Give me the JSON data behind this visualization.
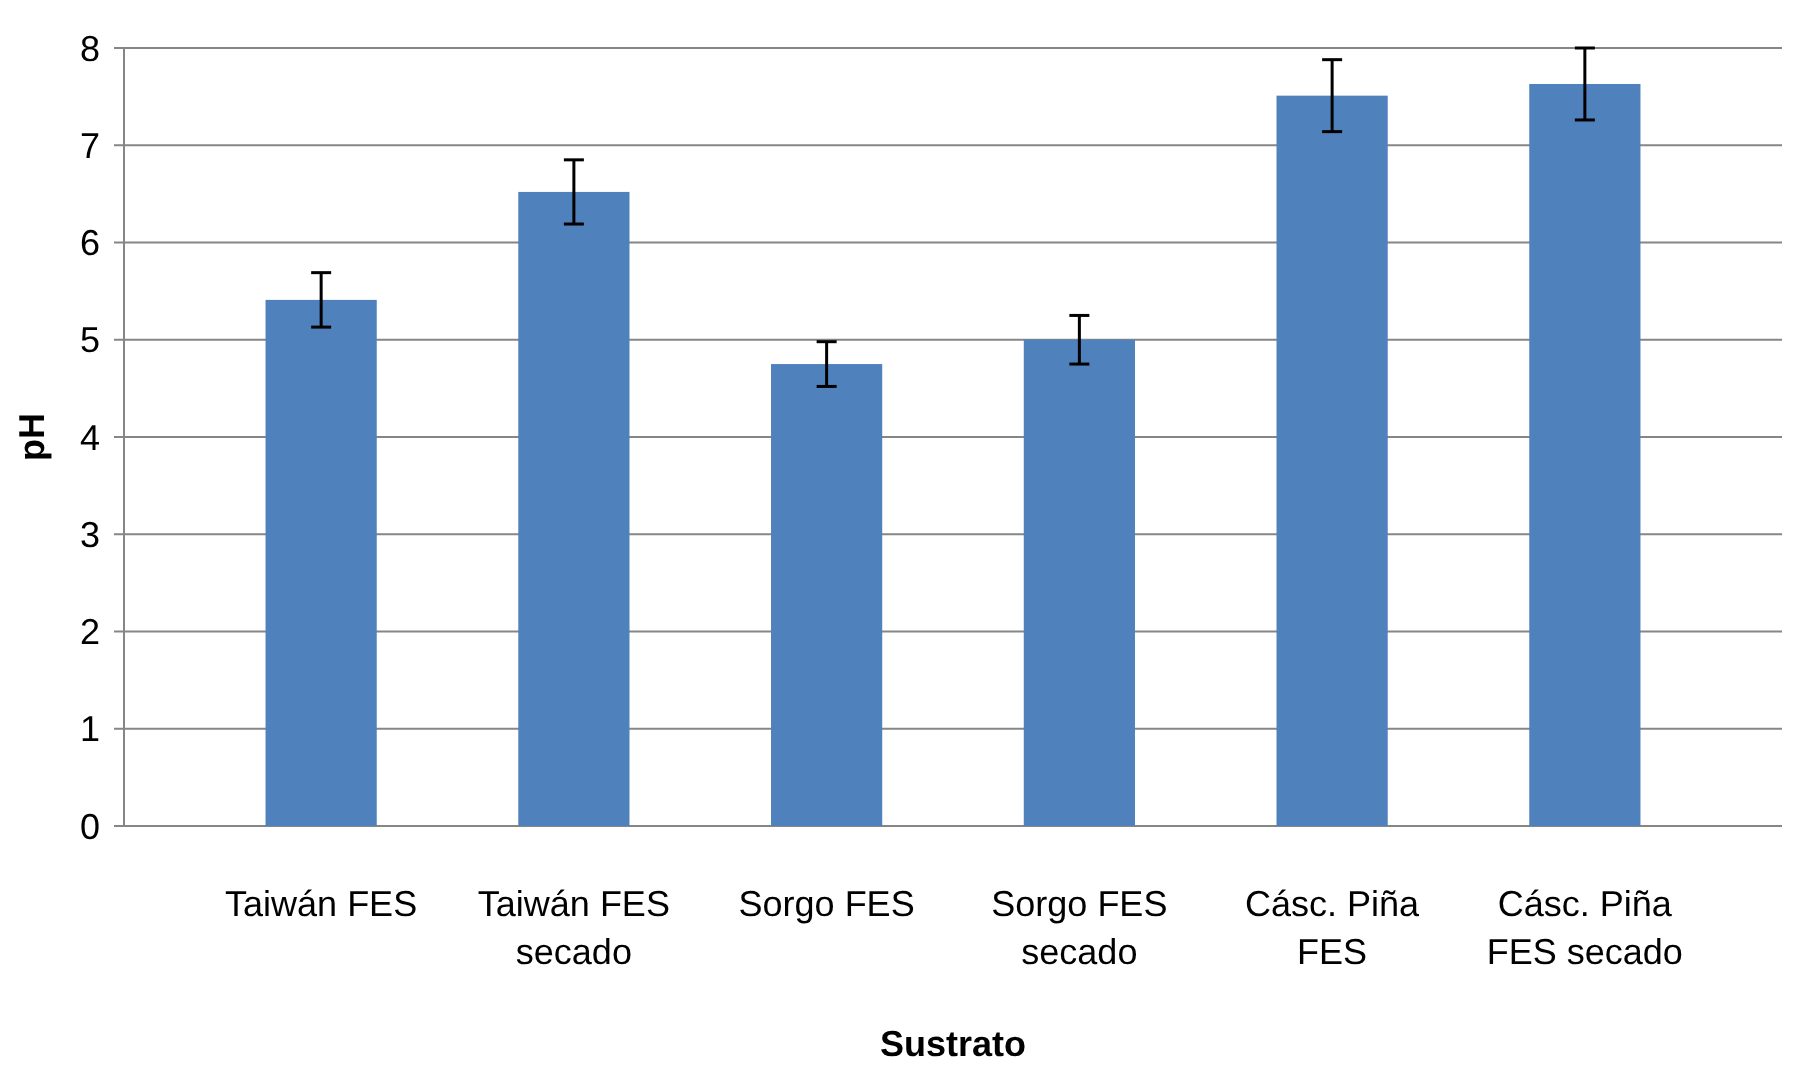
{
  "chart_data": {
    "type": "bar",
    "xlabel": "Sustrato",
    "ylabel": "pH",
    "categories": [
      "Taiwán FES",
      "Taiwán FES secado",
      "Sorgo FES",
      "Sorgo FES secado",
      "Cásc. Piña FES",
      "Cásc. Piña FES secado"
    ],
    "values": [
      5.41,
      6.52,
      4.75,
      5.0,
      7.51,
      7.63
    ],
    "errors": [
      0.28,
      0.33,
      0.23,
      0.25,
      0.37,
      0.37
    ],
    "color": "#4f81bd",
    "ylim": [
      0,
      8
    ],
    "yticks": [
      0,
      1,
      2,
      3,
      4,
      5,
      6,
      7,
      8
    ],
    "grid": "y"
  }
}
